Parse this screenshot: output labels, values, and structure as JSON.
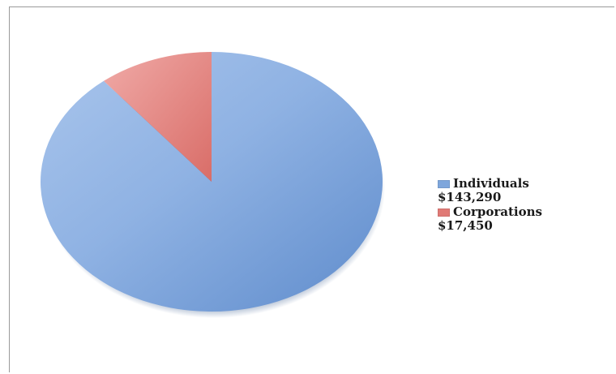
{
  "chart_data": {
    "type": "pie",
    "title": "",
    "slices": [
      {
        "name": "Individuals",
        "value": 143290,
        "value_label": "$143,290",
        "color": "#7ea6dc"
      },
      {
        "name": "Corporations",
        "value": 17450,
        "value_label": "$17,450",
        "color": "#e07a76"
      }
    ],
    "legend_position": "right",
    "style": "3d-shadowed"
  }
}
